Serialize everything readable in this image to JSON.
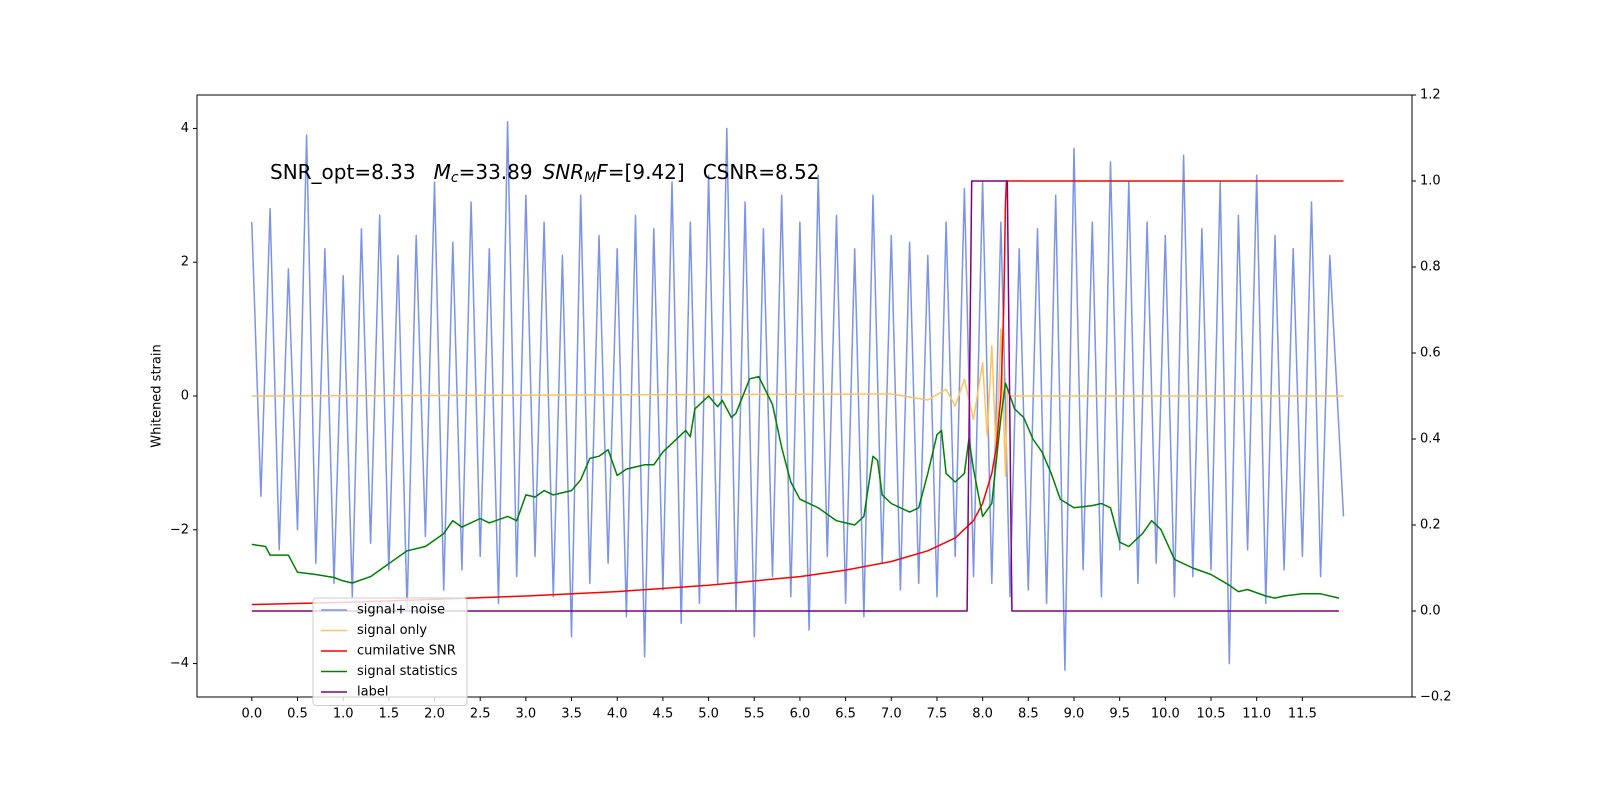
{
  "chart_data": {
    "type": "line",
    "y_label": "Whitened strain",
    "annotation": {
      "snr_opt": "SNR_opt=8.33",
      "mc_symbol": "M",
      "mc_sub": "c",
      "mc_value": "=33.89",
      "mf_symbol": "SNR",
      "mf_sub": "M",
      "mf_f": "F",
      "mf_value": "=[9.42]",
      "csnr": "CSNR=8.52"
    },
    "xlim": [
      -0.6,
      12.7
    ],
    "ylim": [
      -4.5,
      4.5
    ],
    "y2lim": [
      -0.2,
      1.2
    ],
    "xticks": [
      {
        "value": 0,
        "label": "0.0"
      },
      0.5,
      {
        "value": 1,
        "label": "1.0"
      },
      1.5,
      {
        "value": 2,
        "label": "2.0"
      },
      2.5,
      {
        "value": 3,
        "label": "3.0"
      },
      3.5,
      {
        "value": 4,
        "label": "4.0"
      },
      4.5,
      {
        "value": 5,
        "label": "5.0"
      },
      5.5,
      {
        "value": 6,
        "label": "6.0"
      },
      6.5,
      {
        "value": 7,
        "label": "7.0"
      },
      7.5,
      {
        "value": 8,
        "label": "8.0"
      },
      8.5,
      {
        "value": 9,
        "label": "9.0"
      },
      9.5,
      {
        "value": 10,
        "label": "10.0"
      },
      10.5,
      {
        "value": 11,
        "label": "11.0"
      },
      11.5
    ],
    "yticks": [
      {
        "value": -4,
        "label": "−4"
      },
      {
        "value": -2,
        "label": "−2"
      },
      0,
      2,
      4
    ],
    "y2ticks": [
      {
        "value": -0.2,
        "label": "−0.2"
      },
      {
        "value": 0,
        "label": "0.0"
      },
      0.2,
      0.4,
      0.6,
      0.8,
      {
        "value": 1,
        "label": "1.0"
      },
      1.2
    ],
    "series": [
      {
        "name": "signal+ noise",
        "color": "#7b93e8",
        "axis": "y",
        "x": [
          0,
          0.1,
          0.2,
          0.3,
          0.4,
          0.5,
          0.6,
          0.7,
          0.8,
          0.9,
          1,
          1.1,
          1.2,
          1.3,
          1.4,
          1.5,
          1.6,
          1.7,
          1.8,
          1.9,
          2,
          2.1,
          2.2,
          2.3,
          2.4,
          2.5,
          2.6,
          2.7,
          2.8,
          2.9,
          3,
          3.1,
          3.2,
          3.3,
          3.4,
          3.5,
          3.6,
          3.7,
          3.8,
          3.9,
          4,
          4.1,
          4.2,
          4.3,
          4.4,
          4.5,
          4.6,
          4.7,
          4.8,
          4.9,
          5,
          5.1,
          5.2,
          5.3,
          5.4,
          5.5,
          5.6,
          5.7,
          5.8,
          5.9,
          6,
          6.1,
          6.2,
          6.3,
          6.4,
          6.5,
          6.6,
          6.7,
          6.8,
          6.9,
          7,
          7.1,
          7.2,
          7.3,
          7.4,
          7.5,
          7.6,
          7.7,
          7.8,
          7.9,
          8,
          8.1,
          8.2,
          8.3,
          8.4,
          8.5,
          8.6,
          8.7,
          8.8,
          8.9,
          9,
          9.1,
          9.2,
          9.3,
          9.4,
          9.5,
          9.6,
          9.7,
          9.8,
          9.9,
          10,
          10.1,
          10.2,
          10.3,
          10.4,
          10.5,
          10.6,
          10.7,
          10.8,
          10.9,
          11,
          11.1,
          11.2,
          11.3,
          11.4,
          11.5,
          11.6,
          11.7,
          11.8,
          11.95
        ],
        "values": [
          2.6,
          -1.5,
          2.8,
          -2.3,
          1.9,
          -2.0,
          3.9,
          -2.5,
          2.2,
          -2.8,
          1.8,
          -3.0,
          2.5,
          -2.2,
          2.7,
          -2.6,
          2.1,
          -3.2,
          2.4,
          -2.1,
          3.2,
          -2.9,
          2.3,
          -2.6,
          2.9,
          -2.4,
          2.2,
          -3.1,
          4.1,
          -2.7,
          3.0,
          -2.4,
          2.6,
          -3.0,
          2.1,
          -3.6,
          3.0,
          -2.8,
          2.4,
          -2.5,
          2.2,
          -3.3,
          2.7,
          -3.9,
          2.5,
          -2.9,
          3.2,
          -3.4,
          2.6,
          -3.1,
          3.3,
          -2.8,
          4.0,
          -3.2,
          2.9,
          -3.6,
          2.5,
          -2.7,
          3.0,
          -3.0,
          2.6,
          -3.5,
          3.3,
          -2.4,
          2.7,
          -3.1,
          2.2,
          -3.3,
          3.0,
          -2.5,
          2.4,
          -2.9,
          2.3,
          -2.8,
          2.1,
          -3.0,
          2.6,
          -2.4,
          3.1,
          -2.7,
          3.2,
          -2.8,
          2.6,
          -3.0,
          2.2,
          -2.9,
          2.5,
          -3.1,
          3.0,
          -4.1,
          3.7,
          -2.6,
          2.6,
          -3.0,
          3.5,
          -2.3,
          3.2,
          -2.8,
          2.6,
          -2.5,
          2.4,
          -3.0,
          3.6,
          -2.7,
          2.5,
          -2.6,
          3.2,
          -4.0,
          2.7,
          -2.3,
          3.3,
          -3.1,
          2.4,
          -2.6,
          2.2,
          -2.4,
          2.9,
          -2.7,
          2.1,
          -1.8
        ]
      },
      {
        "name": "signal only",
        "color": "#ffc35a",
        "axis": "y",
        "x": [
          0,
          7.0,
          7.4,
          7.6,
          7.7,
          7.8,
          7.9,
          8.0,
          8.05,
          8.1,
          8.15,
          8.2,
          8.25,
          8.27,
          8.3,
          11.95
        ],
        "values": [
          0,
          0.03,
          -0.06,
          0.1,
          -0.15,
          0.25,
          -0.35,
          0.5,
          -0.6,
          0.75,
          -0.9,
          1.0,
          -1.2,
          0.1,
          0,
          0
        ]
      },
      {
        "name": "cumilative SNR",
        "color": "#ff0000",
        "axis": "y2",
        "x": [
          0,
          1,
          2,
          3,
          4,
          5,
          6,
          6.5,
          7,
          7.4,
          7.7,
          7.9,
          8.0,
          8.1,
          8.15,
          8.2,
          8.23,
          8.25,
          8.26,
          11.95
        ],
        "values": [
          0.015,
          0.02,
          0.027,
          0.035,
          0.045,
          0.06,
          0.08,
          0.095,
          0.115,
          0.14,
          0.17,
          0.21,
          0.25,
          0.32,
          0.38,
          0.5,
          0.7,
          0.95,
          1.0,
          1.0
        ]
      },
      {
        "name": "signal statistics",
        "color": "#008000",
        "axis": "y2",
        "x": [
          0,
          0.15,
          0.2,
          0.4,
          0.5,
          0.7,
          0.9,
          1.0,
          1.1,
          1.3,
          1.5,
          1.7,
          1.9,
          2.1,
          2.2,
          2.3,
          2.5,
          2.6,
          2.8,
          2.9,
          3.0,
          3.1,
          3.2,
          3.3,
          3.5,
          3.6,
          3.7,
          3.8,
          3.9,
          4.0,
          4.1,
          4.3,
          4.4,
          4.5,
          4.7,
          4.75,
          4.8,
          4.85,
          5.0,
          5.1,
          5.15,
          5.25,
          5.3,
          5.45,
          5.55,
          5.7,
          5.8,
          5.9,
          6.0,
          6.2,
          6.4,
          6.6,
          6.7,
          6.8,
          6.85,
          6.9,
          7.0,
          7.2,
          7.3,
          7.4,
          7.5,
          7.55,
          7.6,
          7.7,
          7.8,
          7.85,
          7.9,
          8.0,
          8.1,
          8.2,
          8.25,
          8.35,
          8.45,
          8.55,
          8.65,
          8.75,
          8.85,
          9.0,
          9.2,
          9.3,
          9.4,
          9.5,
          9.6,
          9.75,
          9.85,
          9.95,
          10.1,
          10.3,
          10.5,
          10.7,
          10.8,
          10.9,
          11.1,
          11.2,
          11.3,
          11.5,
          11.7,
          11.9
        ],
        "values": [
          0.155,
          0.15,
          0.13,
          0.13,
          0.09,
          0.085,
          0.078,
          0.07,
          0.065,
          0.08,
          0.11,
          0.14,
          0.15,
          0.18,
          0.21,
          0.195,
          0.215,
          0.205,
          0.22,
          0.21,
          0.27,
          0.265,
          0.28,
          0.27,
          0.28,
          0.305,
          0.355,
          0.36,
          0.375,
          0.315,
          0.33,
          0.34,
          0.34,
          0.37,
          0.41,
          0.42,
          0.405,
          0.47,
          0.5,
          0.475,
          0.49,
          0.45,
          0.46,
          0.54,
          0.545,
          0.48,
          0.38,
          0.3,
          0.26,
          0.24,
          0.21,
          0.2,
          0.22,
          0.36,
          0.35,
          0.27,
          0.25,
          0.23,
          0.24,
          0.32,
          0.41,
          0.42,
          0.32,
          0.3,
          0.32,
          0.4,
          0.33,
          0.22,
          0.25,
          0.45,
          0.53,
          0.47,
          0.45,
          0.4,
          0.37,
          0.32,
          0.26,
          0.24,
          0.245,
          0.25,
          0.24,
          0.16,
          0.15,
          0.18,
          0.21,
          0.19,
          0.12,
          0.1,
          0.085,
          0.06,
          0.045,
          0.05,
          0.035,
          0.03,
          0.035,
          0.04,
          0.04,
          0.03
        ]
      },
      {
        "name": "label",
        "color": "#800080",
        "axis": "y2",
        "x": [
          0,
          7.83,
          7.88,
          8.27,
          8.32,
          11.9
        ],
        "values": [
          0,
          0,
          1,
          1,
          0,
          0
        ]
      }
    ]
  }
}
